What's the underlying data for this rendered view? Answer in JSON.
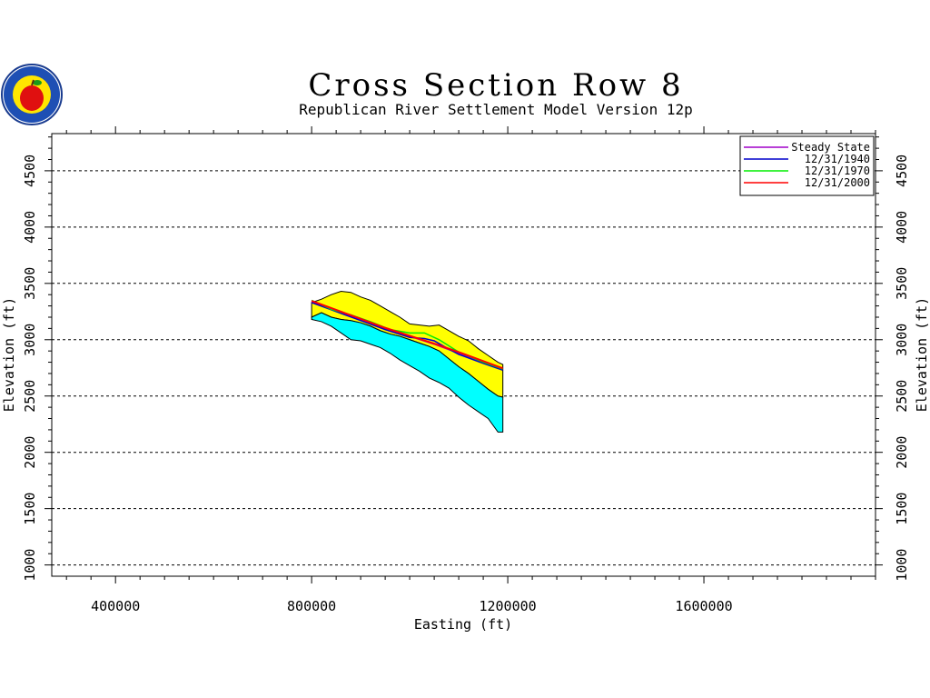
{
  "logo": {
    "name": "agency-seal-with-apple"
  },
  "chart_data": {
    "type": "line",
    "title": "Cross Section Row 8",
    "subtitle": "Republican River Settlement Model Version 12p",
    "xlabel": "Easting (ft)",
    "ylabel": "Elevation (ft)",
    "xlim": [
      270000,
      1950000
    ],
    "ylim": [
      900,
      4830
    ],
    "x_ticks": [
      400000,
      800000,
      1200000,
      1600000
    ],
    "x_tick_labels": [
      "400000",
      "800000",
      "1200000",
      "1600000"
    ],
    "y_ticks": [
      1000,
      1500,
      2000,
      2500,
      3000,
      3500,
      4000,
      4500
    ],
    "y_tick_labels": [
      "1000",
      "1500",
      "2000",
      "2500",
      "3000",
      "3500",
      "4000",
      "4500"
    ],
    "grid": "horizontal dashed",
    "legend_position": "top-right",
    "colors": {
      "top_layer": "#ffff00",
      "bottom_layer": "#00ffff",
      "steady_state": "#a000c8",
      "y1940": "#0000cc",
      "y1970": "#00ee00",
      "y2000": "#ff0000"
    },
    "layers": {
      "x": [
        800000,
        820000,
        840000,
        860000,
        880000,
        900000,
        920000,
        940000,
        960000,
        980000,
        1000000,
        1020000,
        1040000,
        1060000,
        1080000,
        1100000,
        1120000,
        1140000,
        1160000,
        1180000,
        1190000
      ],
      "top": [
        3330,
        3360,
        3400,
        3430,
        3420,
        3380,
        3350,
        3300,
        3250,
        3200,
        3140,
        3130,
        3120,
        3130,
        3080,
        3030,
        2990,
        2920,
        2860,
        2800,
        2780
      ],
      "middle": [
        3200,
        3240,
        3200,
        3180,
        3170,
        3150,
        3120,
        3080,
        3050,
        3030,
        3000,
        2970,
        2940,
        2900,
        2830,
        2760,
        2700,
        2630,
        2560,
        2500,
        2490
      ],
      "bottom": [
        3180,
        3160,
        3120,
        3060,
        3000,
        2990,
        2960,
        2930,
        2880,
        2820,
        2770,
        2720,
        2660,
        2620,
        2570,
        2490,
        2420,
        2360,
        2300,
        2180,
        2180
      ]
    },
    "series": [
      {
        "name": "Steady State",
        "color": "#a000c8",
        "x": [
          800000,
          850000,
          900000,
          950000,
          1000000,
          1050000,
          1100000,
          1150000,
          1190000
        ],
        "y": [
          3340,
          3260,
          3180,
          3100,
          3030,
          2960,
          2880,
          2800,
          2740
        ]
      },
      {
        "name": "12/31/1940",
        "color": "#0000cc",
        "x": [
          800000,
          850000,
          900000,
          950000,
          1000000,
          1030000,
          1050000,
          1070000,
          1100000,
          1150000,
          1190000
        ],
        "y": [
          3330,
          3250,
          3170,
          3090,
          3020,
          3010,
          2990,
          2940,
          2870,
          2790,
          2730
        ]
      },
      {
        "name": "12/31/1970",
        "color": "#00ee00",
        "x": [
          800000,
          815000,
          840000,
          880000,
          920000,
          960000,
          1000000,
          1030000,
          1060000,
          1100000,
          1150000,
          1190000
        ],
        "y": [
          3350,
          3320,
          3270,
          3220,
          3160,
          3090,
          3060,
          3060,
          3000,
          2890,
          2800,
          2740
        ]
      },
      {
        "name": "12/31/2000",
        "color": "#ff0000",
        "x": [
          800000,
          850000,
          900000,
          950000,
          1000000,
          1050000,
          1100000,
          1150000,
          1190000
        ],
        "y": [
          3345,
          3265,
          3185,
          3105,
          3035,
          2965,
          2890,
          2810,
          2745
        ]
      }
    ]
  }
}
